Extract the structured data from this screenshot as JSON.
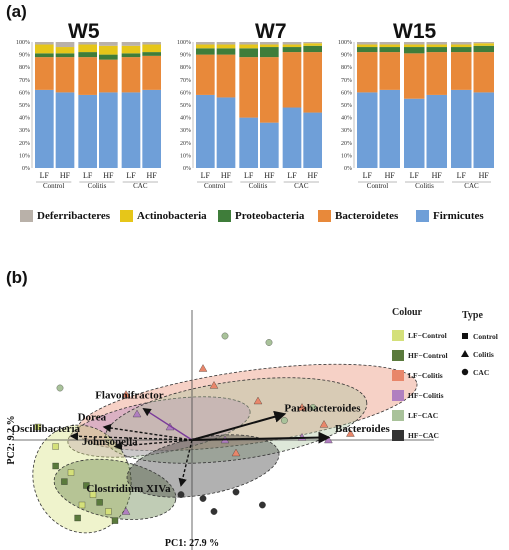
{
  "panel_a": {
    "label": "(a)",
    "weeks": [
      "W5",
      "W7",
      "W15"
    ],
    "y_ticks": [
      "0%",
      "10%",
      "20%",
      "30%",
      "40%",
      "50%",
      "60%",
      "70%",
      "80%",
      "90%",
      "100%"
    ],
    "bar_labels": [
      "LF",
      "HF",
      "LF",
      "HF",
      "LF",
      "HF"
    ],
    "group_labels": [
      "Control",
      "Colitis",
      "CAC"
    ],
    "legend": [
      {
        "name": "Deferribacteres",
        "color": "#b9b1a9"
      },
      {
        "name": "Actinobacteria",
        "color": "#e6c619"
      },
      {
        "name": "Proteobacteria",
        "color": "#3f7d3a"
      },
      {
        "name": "Bacteroidetes",
        "color": "#e8893a"
      },
      {
        "name": "Firmicutes",
        "color": "#6f9fd8"
      }
    ]
  },
  "panel_b": {
    "label": "(b)",
    "x_axis_label": "PC1: 27.9 %",
    "y_axis_label": "PC2: 9.2 %",
    "colour_legend_title": "Colour",
    "type_legend_title": "Type",
    "colour_legend": [
      {
        "name": "LF−Control",
        "color": "#d4e07a"
      },
      {
        "name": "HF−Control",
        "color": "#5a7a3c"
      },
      {
        "name": "LF−Colitis",
        "color": "#e8866a"
      },
      {
        "name": "HF−Colitis",
        "color": "#b07fc0"
      },
      {
        "name": "LF−CAC",
        "color": "#a9c29a"
      },
      {
        "name": "HF−CAC",
        "color": "#333333"
      }
    ],
    "type_legend": [
      {
        "name": "Control",
        "shape": "square"
      },
      {
        "name": "Colitis",
        "shape": "triangle"
      },
      {
        "name": "CAC",
        "shape": "circle"
      }
    ],
    "taxa_labels": [
      "Flavonifractor",
      "Dorea",
      "Oscillibacteria",
      "Johnsonella",
      "Clostridium XIVa",
      "Parabacteroides",
      "Bacteroides"
    ]
  },
  "chart_data": [
    {
      "type": "bar",
      "subtype": "stacked-100%",
      "panel": "(a)",
      "title": "",
      "weeks": [
        "W5",
        "W7",
        "W15"
      ],
      "categories": [
        "LF Control",
        "HF Control",
        "LF Colitis",
        "HF Colitis",
        "LF CAC",
        "HF CAC"
      ],
      "ylim": [
        0,
        100
      ],
      "series": [
        {
          "name": "Firmicutes",
          "values_by_week": {
            "W5": [
              62,
              60,
              58,
              60,
              60,
              62
            ],
            "W7": [
              58,
              56,
              40,
              36,
              48,
              44
            ],
            "W15": [
              60,
              62,
              55,
              58,
              62,
              60
            ]
          }
        },
        {
          "name": "Bacteroidetes",
          "values_by_week": {
            "W5": [
              26,
              28,
              30,
              26,
              28,
              27
            ],
            "W7": [
              32,
              34,
              48,
              52,
              44,
              48
            ],
            "W15": [
              32,
              30,
              36,
              34,
              30,
              32
            ]
          }
        },
        {
          "name": "Proteobacteria",
          "values_by_week": {
            "W5": [
              3,
              3,
              4,
              4,
              3,
              3
            ],
            "W7": [
              5,
              5,
              7,
              8,
              4,
              5
            ],
            "W15": [
              4,
              4,
              5,
              4,
              4,
              5
            ]
          }
        },
        {
          "name": "Actinobacteria",
          "values_by_week": {
            "W5": [
              7,
              5,
              6,
              7,
              6,
              6
            ],
            "W7": [
              3,
              3,
              3,
              2,
              2,
              2
            ],
            "W15": [
              2,
              2,
              2,
              2,
              2,
              2
            ]
          }
        },
        {
          "name": "Deferribacteres",
          "values_by_week": {
            "W5": [
              2,
              4,
              2,
              3,
              3,
              2
            ],
            "W7": [
              2,
              2,
              2,
              2,
              2,
              1
            ],
            "W15": [
              2,
              2,
              2,
              2,
              2,
              1
            ]
          }
        }
      ]
    },
    {
      "type": "scatter",
      "subtype": "PCA biplot",
      "panel": "(b)",
      "xlabel": "PC1: 27.9 %",
      "ylabel": "PC2: 9.2 %",
      "xlim": [
        -1,
        1
      ],
      "ylim": [
        -1,
        1
      ],
      "loadings": [
        {
          "name": "Parabacteroides",
          "x": 0.42,
          "y": 0.2
        },
        {
          "name": "Bacteroides",
          "x": 0.62,
          "y": 0.02
        },
        {
          "name": "Flavonifractor",
          "x": -0.22,
          "y": 0.24
        },
        {
          "name": "Dorea",
          "x": -0.4,
          "y": 0.1
        },
        {
          "name": "Oscillibacteria",
          "x": -0.55,
          "y": 0.03
        },
        {
          "name": "Johnsonella",
          "x": -0.35,
          "y": -0.05
        },
        {
          "name": "Clostridium XIVa",
          "x": -0.05,
          "y": -0.35
        }
      ],
      "groups": [
        {
          "name": "LF−Control",
          "shape": "square",
          "points": [
            [
              -0.62,
              -0.05
            ],
            [
              -0.55,
              -0.25
            ],
            [
              -0.45,
              -0.42
            ],
            [
              -0.5,
              -0.5
            ],
            [
              -0.38,
              -0.55
            ],
            [
              -0.7,
              0.1
            ]
          ]
        },
        {
          "name": "HF−Control",
          "shape": "square",
          "points": [
            [
              -0.58,
              -0.32
            ],
            [
              -0.48,
              -0.35
            ],
            [
              -0.42,
              -0.48
            ],
            [
              -0.52,
              -0.6
            ],
            [
              -0.35,
              -0.62
            ],
            [
              -0.62,
              -0.2
            ]
          ]
        },
        {
          "name": "LF−Colitis",
          "shape": "triangle",
          "points": [
            [
              -0.3,
              0.35
            ],
            [
              0.1,
              0.42
            ],
            [
              0.3,
              0.3
            ],
            [
              0.5,
              0.25
            ],
            [
              0.6,
              0.12
            ],
            [
              0.72,
              0.05
            ],
            [
              0.2,
              -0.1
            ],
            [
              0.05,
              0.55
            ]
          ]
        },
        {
          "name": "HF−Colitis",
          "shape": "triangle",
          "points": [
            [
              -0.25,
              0.2
            ],
            [
              -0.1,
              0.1
            ],
            [
              0.15,
              0.0
            ],
            [
              -0.3,
              -0.55
            ],
            [
              0.5,
              0.02
            ],
            [
              0.62,
              0.0
            ]
          ]
        },
        {
          "name": "LF−CAC",
          "shape": "circle",
          "points": [
            [
              0.15,
              0.8
            ],
            [
              0.35,
              0.75
            ],
            [
              -0.6,
              0.4
            ],
            [
              0.42,
              0.15
            ],
            [
              0.55,
              0.25
            ]
          ]
        },
        {
          "name": "HF−CAC",
          "shape": "circle",
          "points": [
            [
              0.05,
              -0.45
            ],
            [
              0.2,
              -0.4
            ],
            [
              0.32,
              -0.5
            ],
            [
              -0.05,
              -0.42
            ],
            [
              0.1,
              -0.55
            ]
          ]
        }
      ]
    }
  ]
}
